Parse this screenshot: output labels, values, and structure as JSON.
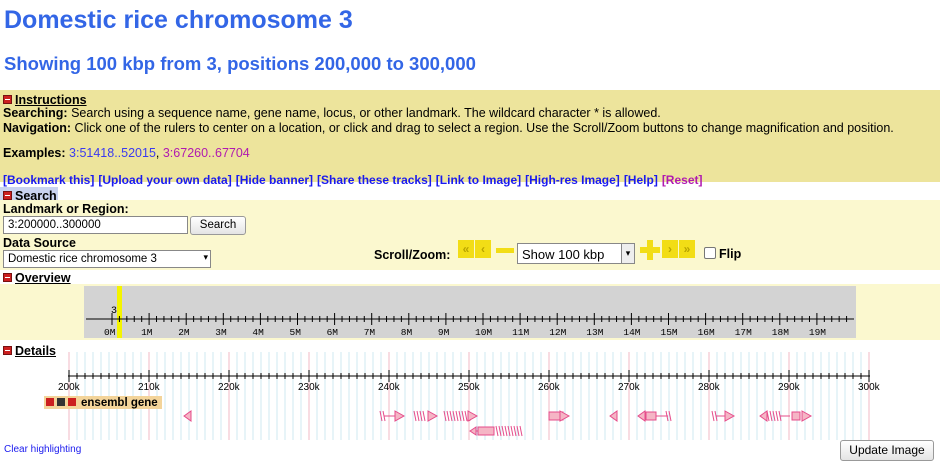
{
  "page": {
    "title": "Domestic rice chromosome 3",
    "subtitle": "Showing 100 kbp from 3, positions 200,000 to 300,000"
  },
  "instructions": {
    "title": "Instructions",
    "searching_label": "Searching:",
    "searching_text": "Search using a sequence name, gene name, locus, or other landmark. The wildcard character * is allowed.",
    "navigation_label": "Navigation:",
    "navigation_text": "Click one of the rulers to center on a location, or click and drag to select a region. Use the Scroll/Zoom buttons to change magnification and position.",
    "examples_label": "Examples:",
    "example1": "3:51418..52015",
    "example2": "3:67260..67704"
  },
  "links": [
    "[Bookmark this]",
    "[Upload your own data]",
    "[Hide banner]",
    "[Share these tracks]",
    "[Link to Image]",
    "[High-res Image]",
    "[Help]"
  ],
  "reset_link": "[Reset]",
  "search": {
    "title": "Search",
    "landmark_label": "Landmark or Region:",
    "landmark_value": "3:200000..300000",
    "search_button": "Search",
    "source_label": "Data Source",
    "source_value": "Domestic rice chromosome 3",
    "scroll_zoom_label": "Scroll/Zoom:",
    "zoom_value": "Show 100 kbp",
    "flip_label": "Flip"
  },
  "overview": {
    "title": "Overview",
    "chrom_label": "3",
    "ticks": [
      "0M",
      "1M",
      "2M",
      "3M",
      "4M",
      "5M",
      "6M",
      "7M",
      "8M",
      "9M",
      "10M",
      "11M",
      "12M",
      "13M",
      "14M",
      "15M",
      "16M",
      "17M",
      "18M",
      "19M"
    ]
  },
  "details": {
    "title": "Details",
    "ticks": [
      "200k",
      "210k",
      "220k",
      "230k",
      "240k",
      "250k",
      "260k",
      "270k",
      "280k",
      "290k",
      "300k"
    ],
    "track_name": "ensembl gene"
  },
  "footer": {
    "clear_highlighting": "Clear highlighting",
    "update_button": "Update Image"
  },
  "colors": {
    "heading_blue": "#3366e6",
    "instructions_bg": "#ede49c",
    "panel_bg": "#fbf8cf",
    "link_blue": "#1a1aee",
    "reset_magenta": "#b01ab0",
    "zoom_button_yellow": "#f2dd16",
    "highlight_yellow": "#f4f400",
    "gene_pink": "#e54c8a",
    "gene_fill": "#f5b5c5"
  }
}
